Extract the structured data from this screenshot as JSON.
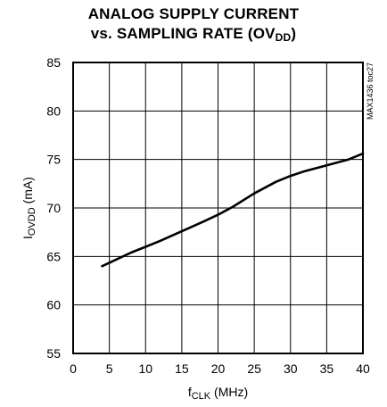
{
  "chart_data": {
    "type": "line",
    "title_line1": "ANALOG SUPPLY CURRENT",
    "title_line2_prefix": "vs. SAMPLING RATE (OV",
    "title_line2_sub": "DD",
    "title_line2_suffix": ")",
    "xlabel_main": "f",
    "xlabel_sub": "CLK",
    "xlabel_suffix": " (MHz)",
    "ylabel_main": "I",
    "ylabel_sub": "OVDD",
    "ylabel_suffix": " (mA)",
    "annotation": "MAX1436 toc27",
    "xlim": [
      0,
      40
    ],
    "ylim": [
      55,
      85
    ],
    "x_ticks": [
      0,
      5,
      10,
      15,
      20,
      25,
      30,
      35,
      40
    ],
    "y_ticks": [
      55,
      60,
      65,
      70,
      75,
      80,
      85
    ],
    "grid": true,
    "series": [
      {
        "x": [
          4,
          6,
          8,
          10,
          12,
          15,
          18,
          20,
          22,
          25,
          28,
          30,
          32,
          35,
          38,
          40
        ],
        "y": [
          64.0,
          64.7,
          65.4,
          66.0,
          66.6,
          67.6,
          68.6,
          69.3,
          70.1,
          71.5,
          72.7,
          73.3,
          73.8,
          74.4,
          75.0,
          75.6
        ]
      }
    ]
  }
}
